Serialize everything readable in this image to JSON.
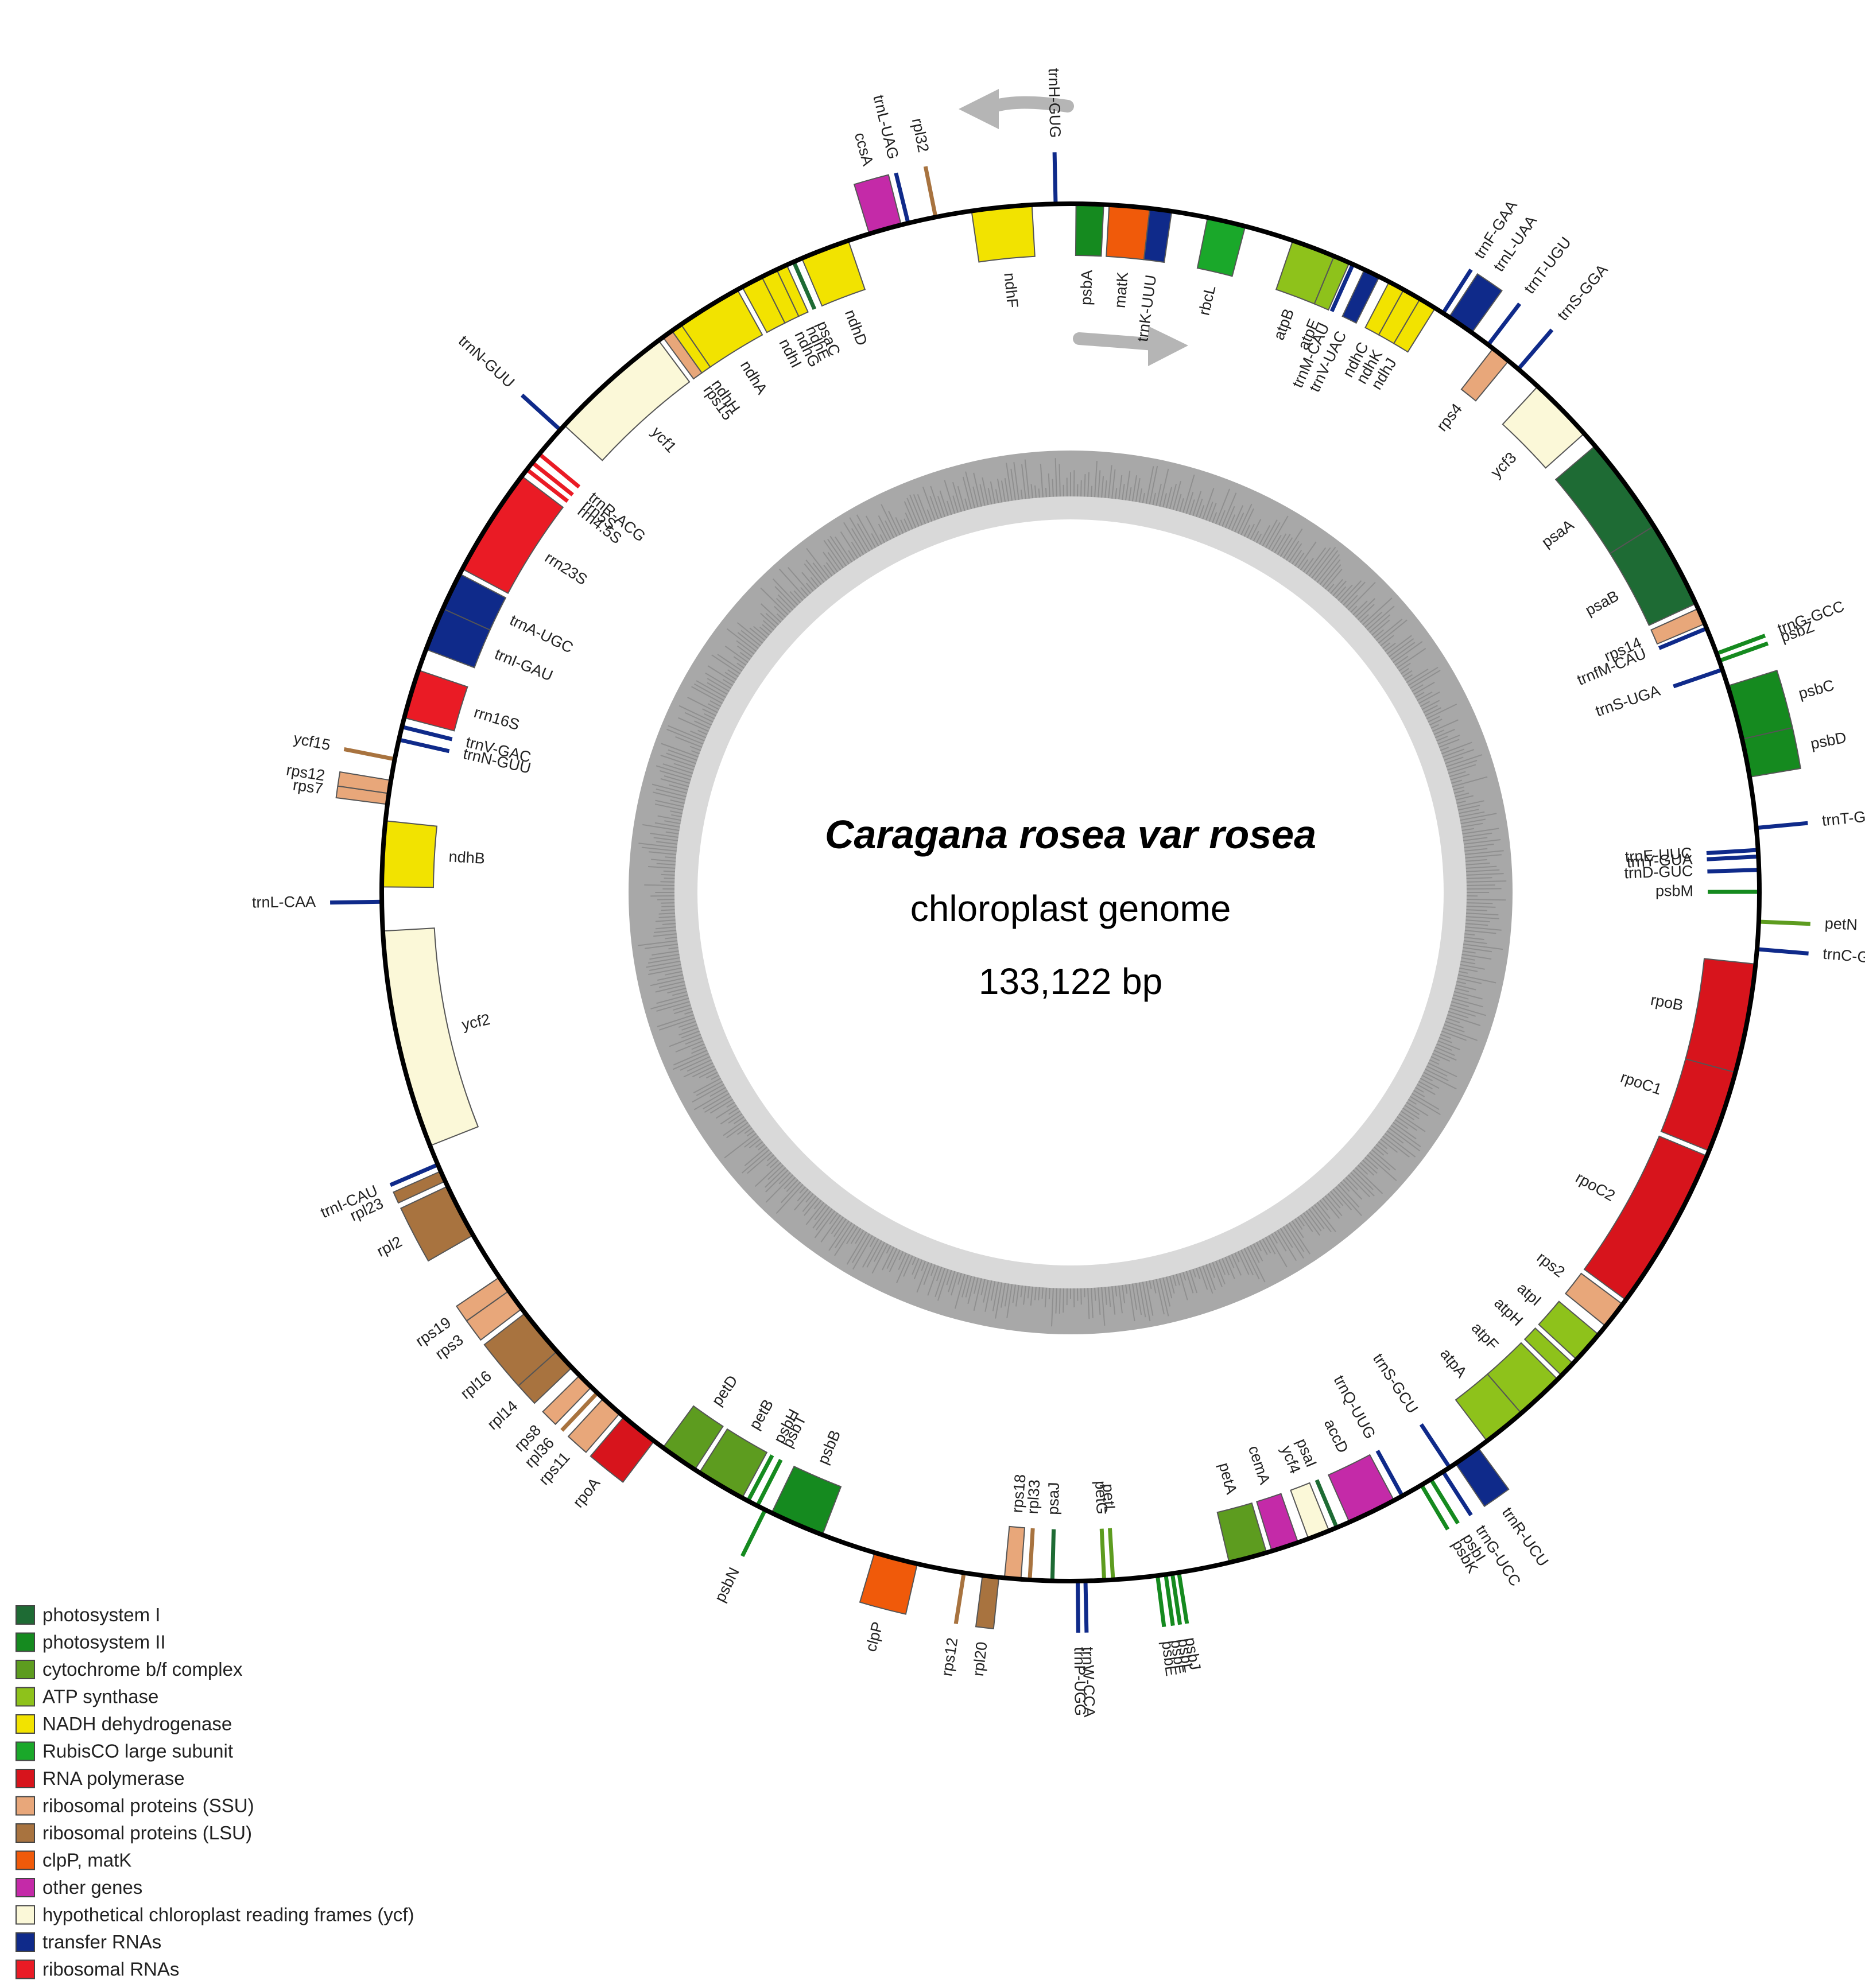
{
  "title": {
    "organism": "Caragana rosea var rosea",
    "genome_type": "chloroplast genome",
    "length": "133,122 bp"
  },
  "genome_length": 133122,
  "category_colors": {
    "ps1": "#1e6b34",
    "ps2": "#158a1f",
    "cyt": "#5d9c1f",
    "atp": "#8ec21b",
    "ndh": "#f2e300",
    "rbc": "#1aa82a",
    "rpo": "#d7141c",
    "ssu": "#e8a77a",
    "lsu": "#a8733f",
    "clp": "#f05a0a",
    "oth": "#c42aa8",
    "ycf": "#fbf8d8",
    "trn": "#0f2a8a",
    "rrn": "#ea1b25"
  },
  "legend": [
    {
      "cat": "ps1",
      "label": "photosystem I"
    },
    {
      "cat": "ps2",
      "label": "photosystem II"
    },
    {
      "cat": "cyt",
      "label": "cytochrome b/f complex"
    },
    {
      "cat": "atp",
      "label": "ATP synthase"
    },
    {
      "cat": "ndh",
      "label": "NADH dehydrogenase"
    },
    {
      "cat": "rbc",
      "label": "RubisCO large subunit"
    },
    {
      "cat": "rpo",
      "label": "RNA polymerase"
    },
    {
      "cat": "ssu",
      "label": "ribosomal proteins (SSU)"
    },
    {
      "cat": "lsu",
      "label": "ribosomal proteins (LSU)"
    },
    {
      "cat": "clp",
      "label": "clpP, matK"
    },
    {
      "cat": "oth",
      "label": "other genes"
    },
    {
      "cat": "ycf",
      "label": "hypothetical chloroplast reading frames (ycf)"
    },
    {
      "cat": "trn",
      "label": "transfer RNAs"
    },
    {
      "cat": "rrn",
      "label": "ribosomal RNAs"
    }
  ],
  "genes": [
    {
      "name": "psbA",
      "cat": "ps2",
      "s": 0.5,
      "e": 3.0,
      "side": "in"
    },
    {
      "name": "matK",
      "cat": "clp",
      "s": 3.5,
      "e": 7.2,
      "side": "in"
    },
    {
      "name": "trnK-UUU",
      "cat": "trn",
      "s": 7.2,
      "e": 9.2,
      "side": "in"
    },
    {
      "name": "rbcL",
      "cat": "rbc",
      "s": 12.5,
      "e": 16.0,
      "side": "in"
    },
    {
      "name": "atpB",
      "cat": "atp",
      "s": 20.5,
      "e": 24.5,
      "side": "in"
    },
    {
      "name": "atpE",
      "cat": "atp",
      "s": 24.5,
      "e": 26.0,
      "side": "in"
    },
    {
      "name": "trnM-CAU",
      "cat": "trn",
      "s": 26.2,
      "e": 26.5,
      "side": "in"
    },
    {
      "name": "trnV-UAC",
      "cat": "trn",
      "s": 27.5,
      "e": 29.0,
      "side": "in"
    },
    {
      "name": "ndhC",
      "cat": "ndh",
      "s": 30.0,
      "e": 31.5,
      "side": "in"
    },
    {
      "name": "ndhK",
      "cat": "ndh",
      "s": 31.5,
      "e": 33.2,
      "side": "in"
    },
    {
      "name": "ndhJ",
      "cat": "ndh",
      "s": 33.2,
      "e": 34.8,
      "side": "in"
    },
    {
      "name": "trnF-GAA",
      "cat": "trn",
      "s": 35.5,
      "e": 35.8,
      "side": "out"
    },
    {
      "name": "trnL-UAA",
      "cat": "trn",
      "s": 36.3,
      "e": 38.8,
      "side": "out"
    },
    {
      "name": "trnT-UGU",
      "cat": "trn",
      "s": 40.5,
      "e": 40.8,
      "side": "out"
    },
    {
      "name": "rps4",
      "cat": "ssu",
      "s": 41.2,
      "e": 43.0,
      "side": "in"
    },
    {
      "name": "trnS-GGA",
      "cat": "trn",
      "s": 44.0,
      "e": 44.3,
      "side": "out"
    },
    {
      "name": "ycf3",
      "cat": "ycf",
      "s": 46.5,
      "e": 52.5,
      "side": "in"
    },
    {
      "name": "psaA",
      "cat": "ps1",
      "s": 54.0,
      "e": 63.0,
      "side": "in"
    },
    {
      "name": "psaB",
      "cat": "ps1",
      "s": 63.0,
      "e": 71.0,
      "side": "in"
    },
    {
      "name": "rps14",
      "cat": "ssu",
      "s": 71.5,
      "e": 73.0,
      "side": "in"
    },
    {
      "name": "trnfM-CAU",
      "cat": "trn",
      "s": 73.3,
      "e": 73.6,
      "side": "in"
    },
    {
      "name": "trnG-GCC",
      "cat": "ps2",
      "s": 75.5,
      "e": 76.3,
      "side": "out"
    },
    {
      "name": "psbZ",
      "cat": "ps2",
      "s": 76.3,
      "e": 76.9,
      "side": "out"
    },
    {
      "name": "trnS-UGA",
      "cat": "trn",
      "s": 77.3,
      "e": 77.6,
      "side": "in"
    },
    {
      "name": "psbC",
      "cat": "ps2",
      "s": 79.0,
      "e": 84.0,
      "side": "out"
    },
    {
      "name": "psbD",
      "cat": "ps2",
      "s": 84.0,
      "e": 87.5,
      "side": "out"
    },
    {
      "name": "trnT-GGU",
      "cat": "trn",
      "s": 92.0,
      "e": 92.3,
      "side": "out"
    },
    {
      "name": "trnE-UUC",
      "cat": "trn",
      "s": 94.0,
      "e": 94.3,
      "side": "in"
    },
    {
      "name": "trnY-GUA",
      "cat": "trn",
      "s": 94.6,
      "e": 94.9,
      "side": "in"
    },
    {
      "name": "trnD-GUC",
      "cat": "trn",
      "s": 95.8,
      "e": 96.1,
      "side": "in"
    },
    {
      "name": "psbM",
      "cat": "ps2",
      "s": 97.8,
      "e": 98.1,
      "side": "in"
    },
    {
      "name": "petN",
      "cat": "cyt",
      "s": 100.5,
      "e": 100.8,
      "side": "out"
    },
    {
      "name": "trnC-GCA",
      "cat": "trn",
      "s": 103.0,
      "e": 103.3,
      "side": "out"
    },
    {
      "name": "rpoB",
      "cat": "rpo",
      "s": 104.5,
      "e": 114.5,
      "side": "in"
    },
    {
      "name": "rpoC1",
      "cat": "rpo",
      "s": 114.5,
      "e": 122.0,
      "side": "in"
    },
    {
      "name": "rpoC2",
      "cat": "rpo",
      "s": 122.5,
      "e": 137.5,
      "side": "in"
    },
    {
      "name": "rps2",
      "cat": "ssu",
      "s": 138.0,
      "e": 140.5,
      "side": "in"
    },
    {
      "name": "atpI",
      "cat": "atp",
      "s": 141.5,
      "e": 144.5,
      "side": "in"
    },
    {
      "name": "atpH",
      "cat": "atp",
      "s": 145.0,
      "e": 146.5,
      "side": "in"
    },
    {
      "name": "atpF",
      "cat": "atp",
      "s": 147.0,
      "e": 151.5,
      "side": "in"
    },
    {
      "name": "atpA",
      "cat": "atp",
      "s": 151.5,
      "e": 155.5,
      "side": "in"
    },
    {
      "name": "trnR-UCU",
      "cat": "trn",
      "s": 156.5,
      "e": 159.0,
      "side": "out"
    },
    {
      "name": "trnS-GCU",
      "cat": "trn",
      "s": 159.5,
      "e": 159.8,
      "side": "in"
    },
    {
      "name": "trnG-UCC",
      "cat": "trn",
      "s": 160.2,
      "e": 160.5,
      "side": "out"
    },
    {
      "name": "psbI",
      "cat": "ps2",
      "s": 161.5,
      "e": 161.8,
      "side": "out"
    },
    {
      "name": "psbK",
      "cat": "ps2",
      "s": 162.5,
      "e": 162.8,
      "side": "out"
    },
    {
      "name": "trnQ-UUG",
      "cat": "trn",
      "s": 164.5,
      "e": 164.8,
      "side": "in"
    },
    {
      "name": "accD",
      "cat": "oth",
      "s": 165.5,
      "e": 170.0,
      "side": "in"
    },
    {
      "name": "psaI",
      "cat": "ps1",
      "s": 171.0,
      "e": 171.5,
      "side": "in"
    },
    {
      "name": "ycf4",
      "cat": "ycf",
      "s": 172.0,
      "e": 174.0,
      "side": "in"
    },
    {
      "name": "cemA",
      "cat": "oth",
      "s": 175.0,
      "e": 177.5,
      "side": "in"
    },
    {
      "name": "petA",
      "cat": "cyt",
      "s": 178.0,
      "e": 181.5,
      "side": "in"
    },
    {
      "name": "psbJ",
      "cat": "ps2",
      "s": 186.0,
      "e": 186.3,
      "side": "out"
    },
    {
      "name": "psbL",
      "cat": "ps2",
      "s": 186.6,
      "e": 186.9,
      "side": "out"
    },
    {
      "name": "psbF",
      "cat": "ps2",
      "s": 187.2,
      "e": 187.5,
      "side": "out"
    },
    {
      "name": "psbE",
      "cat": "ps2",
      "s": 187.8,
      "e": 188.4,
      "side": "out"
    },
    {
      "name": "petL",
      "cat": "cyt",
      "s": 192.0,
      "e": 192.3,
      "side": "in"
    },
    {
      "name": "petG",
      "cat": "cyt",
      "s": 192.8,
      "e": 193.1,
      "side": "in"
    },
    {
      "name": "trnW-CCA",
      "cat": "trn",
      "s": 194.5,
      "e": 194.8,
      "side": "out"
    },
    {
      "name": "trnP-UGG",
      "cat": "trn",
      "s": 195.2,
      "e": 195.5,
      "side": "out"
    },
    {
      "name": "psaJ",
      "cat": "ps1",
      "s": 197.5,
      "e": 197.8,
      "side": "in"
    },
    {
      "name": "rpl33",
      "cat": "lsu",
      "s": 199.5,
      "e": 199.9,
      "side": "in"
    },
    {
      "name": "rps18",
      "cat": "ssu",
      "s": 200.5,
      "e": 202.0,
      "side": "in"
    },
    {
      "name": "rpl20",
      "cat": "lsu",
      "s": 202.5,
      "e": 204.0,
      "side": "out"
    },
    {
      "name": "rps12",
      "cat": "lsu",
      "s": 205.5,
      "e": 205.9,
      "side": "out"
    },
    {
      "name": "clpP",
      "cat": "clp",
      "s": 210.0,
      "e": 214.0,
      "side": "out"
    },
    {
      "name": "psbB",
      "cat": "ps2",
      "s": 219.0,
      "e": 224.0,
      "side": "in"
    },
    {
      "name": "psbN",
      "cat": "ps2",
      "s": 224.5,
      "e": 224.8,
      "side": "out"
    },
    {
      "name": "psbT",
      "cat": "ps2",
      "s": 225.3,
      "e": 225.6,
      "side": "in"
    },
    {
      "name": "psbH",
      "cat": "ps2",
      "s": 226.0,
      "e": 226.8,
      "side": "in"
    },
    {
      "name": "petB",
      "cat": "cyt",
      "s": 227.0,
      "e": 231.5,
      "side": "in"
    },
    {
      "name": "petD",
      "cat": "cyt",
      "s": 232.0,
      "e": 235.5,
      "side": "in"
    },
    {
      "name": "rpoA",
      "cat": "rpo",
      "s": 236.5,
      "e": 240.0,
      "side": "out"
    },
    {
      "name": "rps11",
      "cat": "ssu",
      "s": 240.5,
      "e": 242.5,
      "side": "out"
    },
    {
      "name": "rpl36",
      "cat": "lsu",
      "s": 243.0,
      "e": 243.5,
      "side": "out"
    },
    {
      "name": "rps8",
      "cat": "ssu",
      "s": 244.0,
      "e": 245.5,
      "side": "out"
    },
    {
      "name": "rpl14",
      "cat": "lsu",
      "s": 246.5,
      "e": 248.5,
      "side": "out"
    },
    {
      "name": "rpl16",
      "cat": "lsu",
      "s": 248.5,
      "e": 253.0,
      "side": "out"
    },
    {
      "name": "rps3",
      "cat": "ssu",
      "s": 253.5,
      "e": 255.5,
      "side": "out"
    },
    {
      "name": "rps19",
      "cat": "ssu",
      "s": 255.5,
      "e": 257.0,
      "side": "out"
    },
    {
      "name": "rpl2",
      "cat": "lsu",
      "s": 261.5,
      "e": 266.5,
      "side": "out"
    },
    {
      "name": "rpl23",
      "cat": "lsu",
      "s": 267.0,
      "e": 268.0,
      "side": "out"
    },
    {
      "name": "trnI-CAU",
      "cat": "trn",
      "s": 268.5,
      "e": 268.8,
      "side": "out"
    },
    {
      "name": "ycf2",
      "cat": "ycf",
      "s": 270.5,
      "e": 290.5,
      "side": "in"
    },
    {
      "name": "trnL-CAA",
      "cat": "trn",
      "s": 293.0,
      "e": 293.3,
      "side": "out"
    },
    {
      "name": "ndhB",
      "cat": "ndh",
      "s": 294.5,
      "e": 300.5,
      "side": "in"
    },
    {
      "name": "rps7",
      "cat": "ssu",
      "s": 302.0,
      "e": 303.0,
      "side": "out"
    },
    {
      "name": "rps12",
      "cat": "ssu",
      "s": 303.0,
      "e": 304.2,
      "side": "out"
    },
    {
      "name": "ycf15",
      "cat": "lsu",
      "s": 306.0,
      "e": 306.3,
      "side": "out"
    },
    {
      "name": "trnN-GUU",
      "cat": "trn",
      "s": 307.8,
      "e": 308.1,
      "side": "in"
    },
    {
      "name": "trnV-GAC",
      "cat": "trn",
      "s": 309.0,
      "e": 309.3,
      "side": "in"
    },
    {
      "name": "rrn16S",
      "cat": "rrn",
      "s": 310.0,
      "e": 314.5,
      "side": "in"
    },
    {
      "name": "trnI-GAU",
      "cat": "trn",
      "s": 316.5,
      "e": 320.5,
      "side": "in"
    },
    {
      "name": "trnA-UGC",
      "cat": "trn",
      "s": 320.5,
      "e": 324.0,
      "side": "in"
    },
    {
      "name": "rrn23S",
      "cat": "rrn",
      "s": 324.5,
      "e": 334.5,
      "side": "in"
    },
    {
      "name": "rrn4.5S",
      "cat": "rrn",
      "s": 335.0,
      "e": 335.5,
      "side": "in"
    },
    {
      "name": "rrn5S",
      "cat": "rrn",
      "s": 335.8,
      "e": 336.3,
      "side": "in"
    },
    {
      "name": "trnR-ACG",
      "cat": "rrn",
      "s": 336.8,
      "e": 337.3,
      "side": "in"
    },
    {
      "name": "trnN-GUU",
      "cat": "trn",
      "s": 339.8,
      "e": 340.1,
      "side": "out"
    },
    {
      "name": "ycf1",
      "cat": "ycf",
      "s": 340.5,
      "e": 352.0,
      "side": "in"
    },
    {
      "name": "rps15",
      "cat": "ssu",
      "s": 352.5,
      "e": 353.5,
      "side": "in"
    },
    {
      "name": "ndhH",
      "cat": "ndh",
      "s": 353.5,
      "e": 354.5,
      "side": "in"
    },
    {
      "name": "ndhA",
      "cat": "ndh",
      "s": 354.5,
      "e": 360.5,
      "side": "in"
    },
    {
      "name": "ndhI",
      "cat": "ndh",
      "s": 361.0,
      "e": 363.0,
      "side": "in"
    },
    {
      "name": "ndhG",
      "cat": "ndh",
      "s": 363.0,
      "e": 364.5,
      "side": "in"
    },
    {
      "name": "ndhE",
      "cat": "ndh",
      "s": 364.5,
      "e": 365.5,
      "side": "in"
    },
    {
      "name": "psaC",
      "cat": "ps1",
      "s": 366.0,
      "e": 366.4,
      "side": "in"
    },
    {
      "name": "ndhD",
      "cat": "ndh",
      "s": 367.0,
      "e": 371.5,
      "side": "in"
    },
    {
      "name": "ccsA",
      "cat": "oth",
      "s": 373.5,
      "e": 376.5,
      "side": "out"
    },
    {
      "name": "trnL-UAG",
      "cat": "trn",
      "s": 377.0,
      "e": 377.3,
      "side": "out"
    },
    {
      "name": "rpl32",
      "cat": "lsu",
      "s": 379.5,
      "e": 379.9,
      "side": "out"
    },
    {
      "name": "ndhF",
      "cat": "ndh",
      "s": 383.0,
      "e": 388.5,
      "side": "in"
    },
    {
      "name": "trnH-GUG",
      "cat": "trn",
      "s": 390.5,
      "e": 390.8,
      "side": "out"
    }
  ]
}
